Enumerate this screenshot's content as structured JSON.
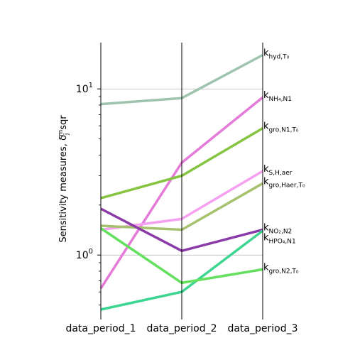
{
  "chart_data": {
    "type": "line",
    "categories": [
      "data_period_1",
      "data_period_2",
      "data_period_3"
    ],
    "ylabel": "Sensitivity measures, δ_j^msqr",
    "yscale": "log",
    "ylim": [
      0.43,
      19
    ],
    "yticks": [
      {
        "value": 1,
        "label": "10",
        "sup": "0"
      },
      {
        "value": 10,
        "label": "10",
        "sup": "1"
      }
    ],
    "grid": "horizontal at major ticks",
    "legend": "inline labels at right end",
    "series": [
      {
        "name": "k_hyd,T0",
        "label_main": "k",
        "label_sub": "hyd,T₀",
        "color": "#9ec4ad",
        "values": [
          8.1,
          8.8,
          16.0
        ]
      },
      {
        "name": "k_NH4,N1",
        "label_main": "k",
        "label_sub": "NH₄,N1",
        "color": "#e57bd8",
        "values": [
          0.63,
          3.6,
          8.9
        ]
      },
      {
        "name": "k_gro,N1,T0",
        "label_main": "k",
        "label_sub": "gro,N1,T₀",
        "color": "#85c440",
        "values": [
          2.2,
          3.0,
          5.8
        ]
      },
      {
        "name": "k_S,H,aer",
        "label_main": "k",
        "label_sub": "S,H,aer",
        "color": "#f5a0f0",
        "values": [
          1.42,
          1.65,
          3.2
        ]
      },
      {
        "name": "k_gro,Haer,T0",
        "label_main": "k",
        "label_sub": "gro,Haer,T₀",
        "color": "#a6c26e",
        "values": [
          1.5,
          1.42,
          2.7
        ]
      },
      {
        "name": "k_NO2,N2",
        "label_main": "k",
        "label_sub": "NO₂,N2",
        "color": "#8a3ba8",
        "values": [
          1.9,
          1.06,
          1.42
        ]
      },
      {
        "name": "k_HPO4,N1",
        "label_main": "k",
        "label_sub": "HPO₄,N1",
        "color": "#3dd691",
        "values": [
          0.47,
          0.6,
          1.4
        ]
      },
      {
        "name": "k_gro,N2,T0",
        "label_main": "k",
        "label_sub": "gro,N2,T₀",
        "color": "#62e05e",
        "values": [
          1.45,
          0.68,
          0.82
        ]
      }
    ]
  }
}
